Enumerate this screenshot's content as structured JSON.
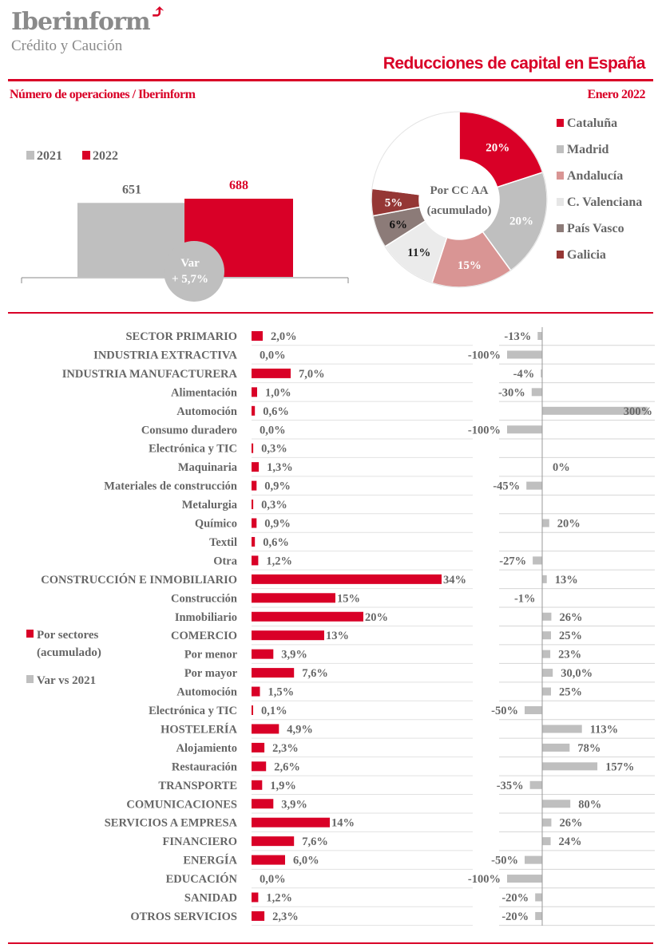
{
  "header": {
    "logo": "Iberinform",
    "logo_sub": "Crédito y Caución",
    "title": "Reducciones de capital en España",
    "subtitle": "Número de operaciones / Iberinform",
    "date": "Enero 2022"
  },
  "colors": {
    "red": "#d90027",
    "gray": "#bfbfbf",
    "text": "#666666"
  },
  "chart_data": [
    {
      "type": "bar",
      "title": "Número de operaciones",
      "categories": [
        "2021",
        "2022"
      ],
      "values": [
        651,
        688
      ],
      "value_labels": [
        "651",
        "688"
      ],
      "legend": [
        "2021",
        "2022"
      ],
      "colors": [
        "#bfbfbf",
        "#d90027"
      ],
      "annotation": {
        "line1": "Var",
        "line2": "+ 5,7%"
      }
    },
    {
      "type": "pie",
      "center_label": [
        "Por CC AA",
        "(acumulado)"
      ],
      "slices": [
        {
          "name": "Cataluña",
          "value": 20,
          "label": "20%",
          "color": "#d90027",
          "label_color": "#ffffff"
        },
        {
          "name": "Madrid",
          "value": 20,
          "label": "20%",
          "color": "#bfbfbf",
          "label_color": "#ffffff"
        },
        {
          "name": "Andalucía",
          "value": 15,
          "label": "15%",
          "color": "#d99594",
          "label_color": "#ffffff"
        },
        {
          "name": "C. Valenciana",
          "value": 11,
          "label": "11%",
          "color": "#ebebeb",
          "label_color": "#222222"
        },
        {
          "name": "País Vasco",
          "value": 6,
          "label": "6%",
          "color": "#8c7b78",
          "label_color": "#111111"
        },
        {
          "name": "Galicia",
          "value": 5,
          "label": "5%",
          "color": "#953735",
          "label_color": "#ffffff"
        },
        {
          "name": "",
          "value": 23,
          "label": "",
          "color": "#ffffff",
          "label_color": "#ffffff"
        }
      ]
    },
    {
      "type": "bar",
      "orientation": "horizontal",
      "legend": [
        "Por sectores",
        "(acumulado)",
        "Var vs 2021"
      ],
      "series": [
        {
          "name": "Por sectores (acumulado)",
          "color": "#d90027"
        },
        {
          "name": "Var vs 2021",
          "color": "#bfbfbf"
        }
      ],
      "rows": [
        {
          "label": "SECTOR PRIMARIO",
          "share": 2.0,
          "share_label": "2,0%",
          "var": -13,
          "var_label": "-13%"
        },
        {
          "label": "INDUSTRIA EXTRACTIVA",
          "share": 0.0,
          "share_label": "0,0%",
          "var": -100,
          "var_label": "-100%"
        },
        {
          "label": "INDUSTRIA MANUFACTURERA",
          "share": 7.0,
          "share_label": "7,0%",
          "var": -4,
          "var_label": "-4%"
        },
        {
          "label": "Alimentación",
          "share": 1.0,
          "share_label": "1,0%",
          "var": -30,
          "var_label": "-30%"
        },
        {
          "label": "Automoción",
          "share": 0.6,
          "share_label": "0,6%",
          "var": 300,
          "var_label": "300%"
        },
        {
          "label": "Consumo duradero",
          "share": 0.0,
          "share_label": "0,0%",
          "var": -100,
          "var_label": "-100%"
        },
        {
          "label": "Electrónica y TIC",
          "share": 0.3,
          "share_label": "0,3%",
          "var": null,
          "var_label": ""
        },
        {
          "label": "Maquinaria",
          "share": 1.3,
          "share_label": "1,3%",
          "var": 0,
          "var_label": "0%"
        },
        {
          "label": "Materiales de construcción",
          "share": 0.9,
          "share_label": "0,9%",
          "var": -45,
          "var_label": "-45%"
        },
        {
          "label": "Metalurgia",
          "share": 0.3,
          "share_label": "0,3%",
          "var": null,
          "var_label": ""
        },
        {
          "label": "Químico",
          "share": 0.9,
          "share_label": "0,9%",
          "var": 20,
          "var_label": "20%"
        },
        {
          "label": "Textil",
          "share": 0.6,
          "share_label": "0,6%",
          "var": null,
          "var_label": ""
        },
        {
          "label": "Otra",
          "share": 1.2,
          "share_label": "1,2%",
          "var": -27,
          "var_label": "-27%"
        },
        {
          "label": "CONSTRUCCIÓN E INMOBILIARIO",
          "share": 34,
          "share_label": "34%",
          "var": 13,
          "var_label": "13%"
        },
        {
          "label": "Construcción",
          "share": 15,
          "share_label": "15%",
          "var": -1,
          "var_label": "-1%"
        },
        {
          "label": "Inmobiliario",
          "share": 20,
          "share_label": "20%",
          "var": 26,
          "var_label": "26%"
        },
        {
          "label": "COMERCIO",
          "share": 13,
          "share_label": "13%",
          "var": 25,
          "var_label": "25%"
        },
        {
          "label": "Por menor",
          "share": 3.9,
          "share_label": "3,9%",
          "var": 23,
          "var_label": "23%"
        },
        {
          "label": "Por mayor",
          "share": 7.6,
          "share_label": "7,6%",
          "var": 30,
          "var_label": "30,0%"
        },
        {
          "label": "Automoción",
          "share": 1.5,
          "share_label": "1,5%",
          "var": 25,
          "var_label": "25%"
        },
        {
          "label": "Electrónica y TIC",
          "share": 0.1,
          "share_label": "0,1%",
          "var": -50,
          "var_label": "-50%"
        },
        {
          "label": "HOSTELERÍA",
          "share": 4.9,
          "share_label": "4,9%",
          "var": 113,
          "var_label": "113%"
        },
        {
          "label": "Alojamiento",
          "share": 2.3,
          "share_label": "2,3%",
          "var": 78,
          "var_label": "78%"
        },
        {
          "label": "Restauración",
          "share": 2.6,
          "share_label": "2,6%",
          "var": 157,
          "var_label": "157%"
        },
        {
          "label": "TRANSPORTE",
          "share": 1.9,
          "share_label": "1,9%",
          "var": -35,
          "var_label": "-35%"
        },
        {
          "label": "COMUNICACIONES",
          "share": 3.9,
          "share_label": "3,9%",
          "var": 80,
          "var_label": "80%"
        },
        {
          "label": "SERVICIOS A EMPRESA",
          "share": 14,
          "share_label": "14%",
          "var": 26,
          "var_label": "26%"
        },
        {
          "label": "FINANCIERO",
          "share": 7.6,
          "share_label": "7,6%",
          "var": 24,
          "var_label": "24%"
        },
        {
          "label": "ENERGÍA",
          "share": 6.0,
          "share_label": "6,0%",
          "var": -50,
          "var_label": "-50%"
        },
        {
          "label": "EDUCACIÓN",
          "share": 0.0,
          "share_label": "0,0%",
          "var": -100,
          "var_label": "-100%"
        },
        {
          "label": "SANIDAD",
          "share": 1.2,
          "share_label": "1,2%",
          "var": -20,
          "var_label": "-20%"
        },
        {
          "label": "OTROS SERVICIOS",
          "share": 2.3,
          "share_label": "2,3%",
          "var": -20,
          "var_label": "-20%"
        }
      ]
    }
  ]
}
